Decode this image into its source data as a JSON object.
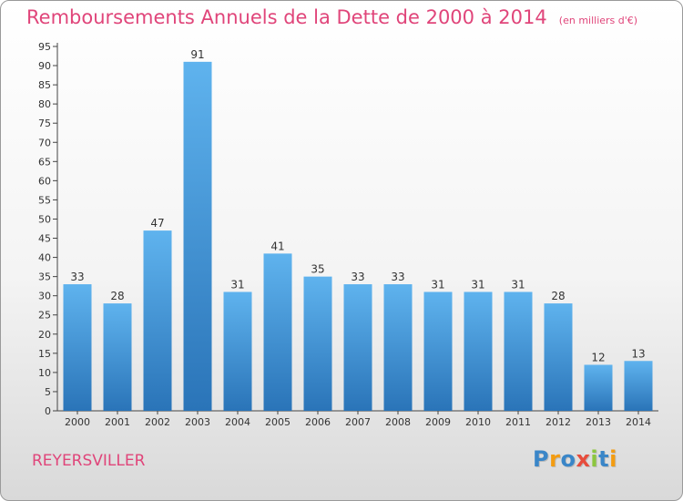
{
  "chart_data": {
    "type": "bar",
    "title": "Remboursements Annuels de la Dette de 2000 à 2014",
    "unit_note": "(en milliers d'€)",
    "categories": [
      "2000",
      "2001",
      "2002",
      "2003",
      "2004",
      "2005",
      "2006",
      "2007",
      "2008",
      "2009",
      "2010",
      "2011",
      "2012",
      "2013",
      "2014"
    ],
    "values": [
      33,
      28,
      47,
      91,
      31,
      41,
      35,
      33,
      33,
      31,
      31,
      31,
      28,
      12,
      13
    ],
    "ylim": [
      0,
      95
    ],
    "yticks": [
      0,
      5,
      10,
      15,
      20,
      25,
      30,
      35,
      40,
      45,
      50,
      55,
      60,
      65,
      70,
      75,
      80,
      85,
      90,
      95
    ],
    "grid": false,
    "bar_color_top": "#5fb3ee",
    "bar_color_bottom": "#2a74b8"
  },
  "footer": {
    "commune": "REYERSVILLER",
    "logo_letters": [
      "P",
      "r",
      "o",
      "x",
      "i",
      "t",
      "i"
    ],
    "logo_colors": [
      "#3a86c8",
      "#f39c12",
      "#3a86c8",
      "#e74c3c",
      "#8cc63f",
      "#3a86c8",
      "#f39c12"
    ]
  }
}
